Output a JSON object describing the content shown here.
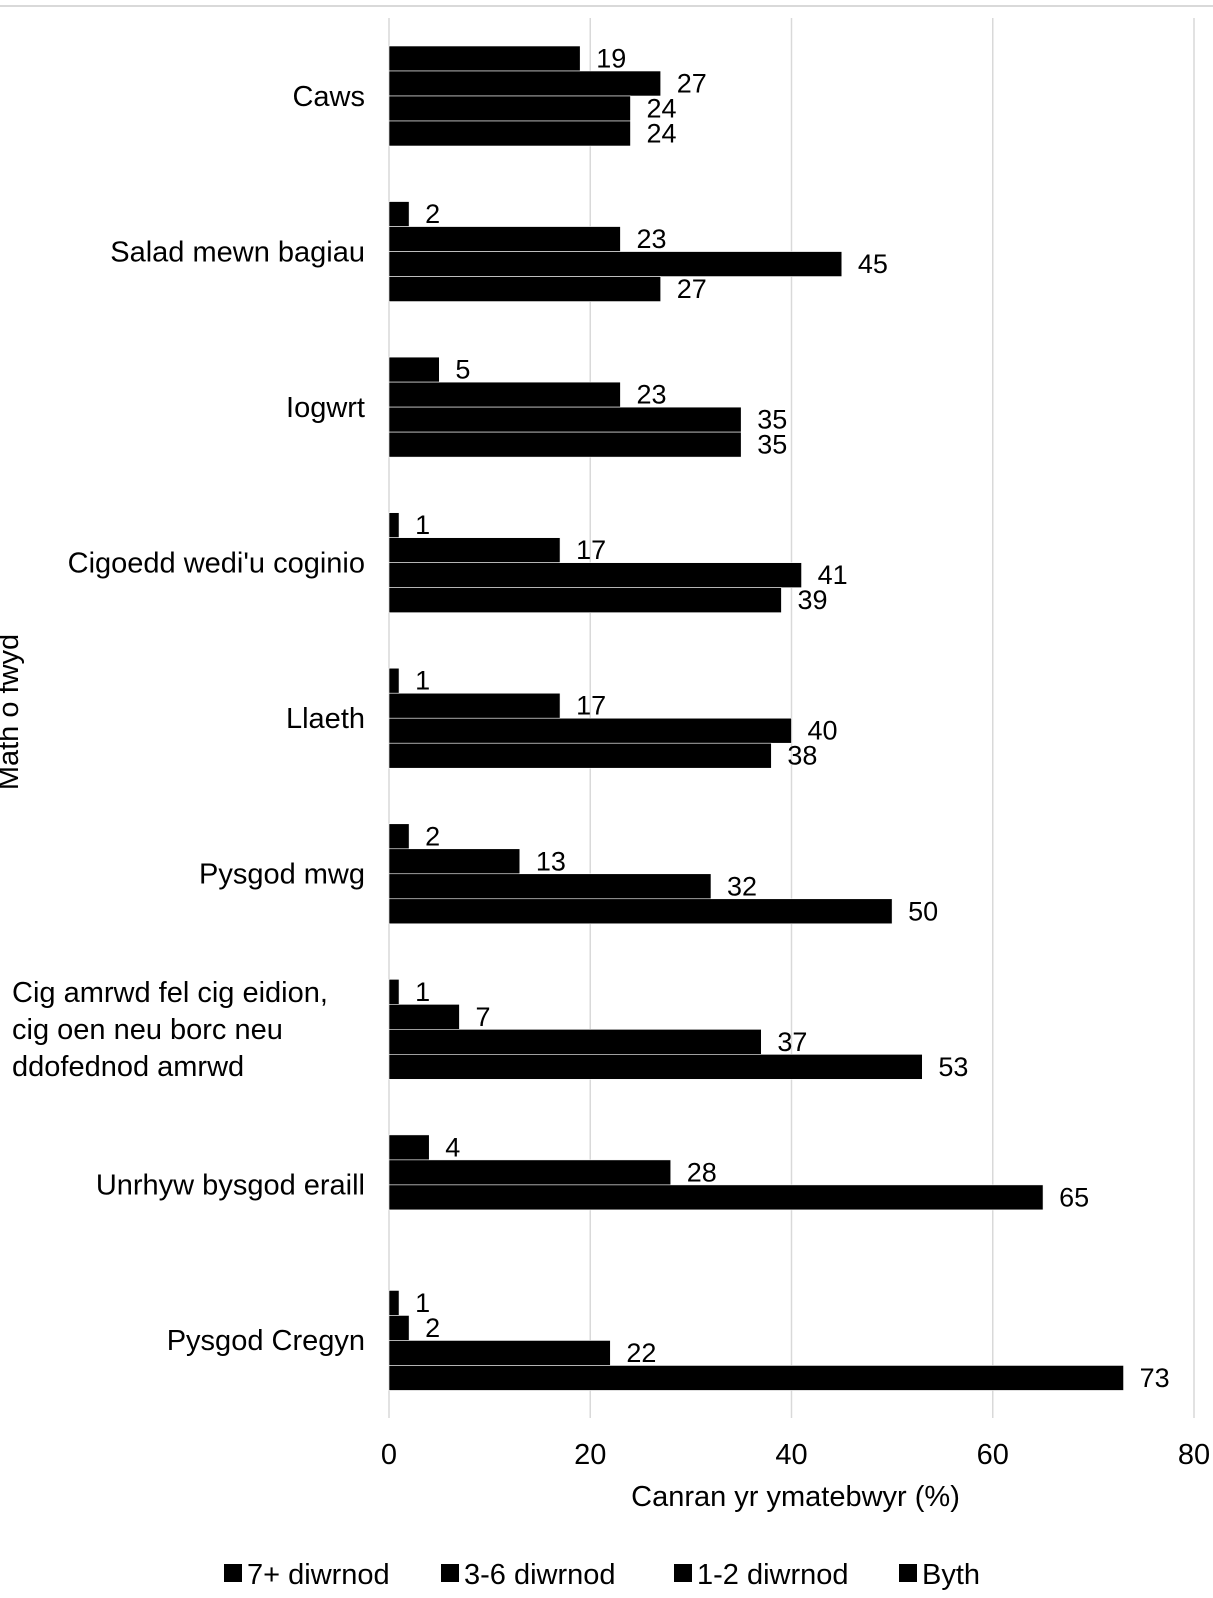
{
  "chart_data": {
    "type": "bar",
    "orientation": "horizontal",
    "title": "",
    "xlabel": "Canran yr ymatebwyr (%)",
    "ylabel": "Math o fwyd",
    "xlim": [
      0,
      80
    ],
    "x_ticks": [
      0,
      20,
      40,
      60,
      80
    ],
    "grid": "vertical",
    "legend_position": "bottom",
    "categories": [
      [
        "Caws"
      ],
      [
        "Salad mewn bagiau"
      ],
      [
        "Iogwrt"
      ],
      [
        "Cigoedd wedi'u coginio"
      ],
      [
        "Llaeth"
      ],
      [
        "Pysgod mwg"
      ],
      [
        "Cig amrwd fel cig eidion,",
        "cig oen neu borc neu",
        "ddofednod amrwd"
      ],
      [
        "Unrhyw bysgod eraill"
      ],
      [
        "Pysgod Cregyn"
      ]
    ],
    "series": [
      {
        "name": "7+ diwrnod",
        "color": "#000000",
        "values": [
          19,
          2,
          5,
          1,
          1,
          2,
          1,
          4,
          1
        ]
      },
      {
        "name": "3-6 diwrnod",
        "color": "#000000",
        "values": [
          27,
          23,
          23,
          17,
          17,
          13,
          7,
          28,
          2
        ]
      },
      {
        "name": "1-2 diwrnod",
        "color": "#000000",
        "values": [
          24,
          45,
          35,
          41,
          40,
          32,
          37,
          65,
          22
        ]
      },
      {
        "name": "Byth",
        "color": "#000000",
        "values": [
          24,
          27,
          35,
          39,
          38,
          50,
          53,
          null,
          73
        ]
      }
    ]
  }
}
